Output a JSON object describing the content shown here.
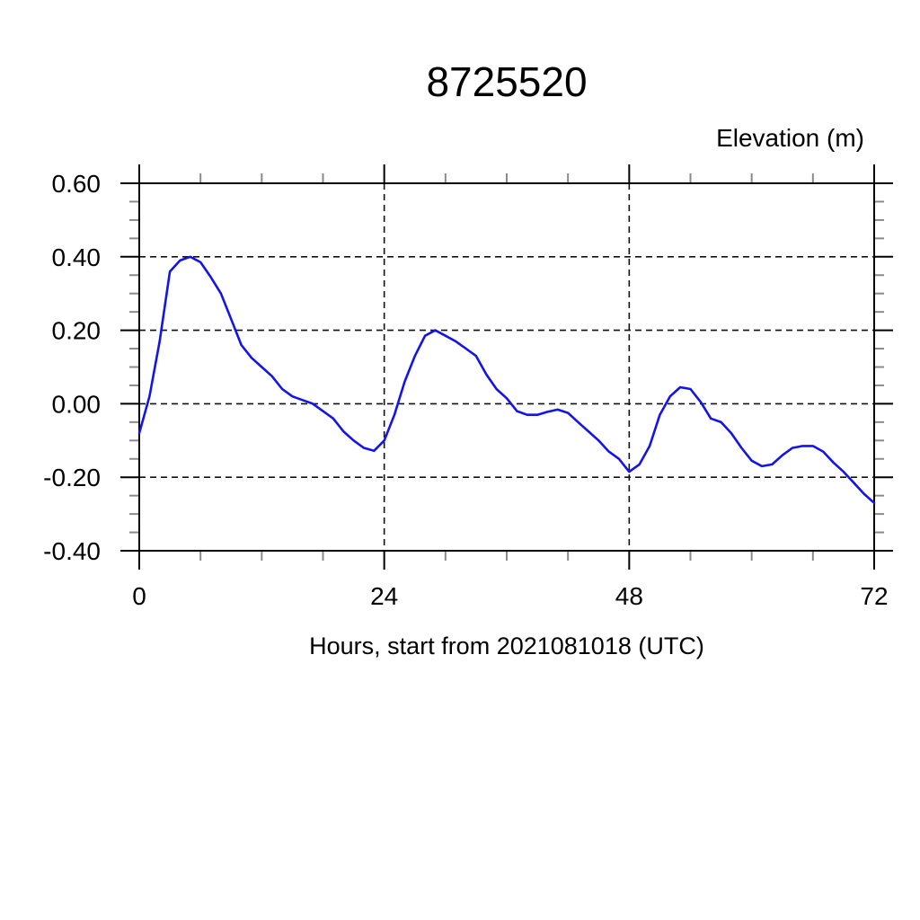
{
  "page": {
    "background": "#ffffff"
  },
  "chart_data": {
    "type": "line",
    "title": "8725520",
    "y_axis_title": "Elevation (m)",
    "xlabel": "Hours, start from 2021081018 (UTC)",
    "ylabel": "",
    "xlim": [
      0,
      72
    ],
    "ylim": [
      -0.4,
      0.6
    ],
    "x_major_ticks": [
      0,
      24,
      48,
      72
    ],
    "x_tick_labels": [
      "0",
      "24",
      "48",
      "72"
    ],
    "x_minor_tick_step": 6,
    "y_major_ticks": [
      0.6,
      0.4,
      0.2,
      0,
      -0.2,
      -0.4
    ],
    "y_tick_labels": [
      "0.60",
      "0.40",
      "0.20",
      "0.00",
      "-0.20",
      "-0.40"
    ],
    "y_minor_tick_step": 0.05,
    "grid": {
      "style": "dashed",
      "on_major_x": true,
      "on_major_y": true
    },
    "legend_position": "none",
    "colors": {
      "line": "#1414e6",
      "axis": "#000000",
      "grid": "#111111",
      "minor_tick": "#8a8a8a",
      "text": "#000000"
    },
    "series": [
      {
        "name": "elevation",
        "x": [
          0,
          1,
          2,
          3,
          4,
          5,
          6,
          7,
          8,
          9,
          10,
          11,
          12,
          13,
          14,
          15,
          16,
          17,
          18,
          19,
          20,
          21,
          22,
          23,
          24,
          25,
          26,
          27,
          28,
          29,
          30,
          31,
          32,
          33,
          34,
          35,
          36,
          37,
          38,
          39,
          40,
          41,
          42,
          43,
          44,
          45,
          46,
          47,
          48,
          49,
          50,
          51,
          52,
          53,
          54,
          55,
          56,
          57,
          58,
          59,
          60,
          61,
          62,
          63,
          64,
          65,
          66,
          67,
          68,
          69,
          70,
          71,
          72
        ],
        "y": [
          -0.08,
          0.02,
          0.17,
          0.36,
          0.39,
          0.4,
          0.385,
          0.345,
          0.3,
          0.23,
          0.16,
          0.125,
          0.1,
          0.075,
          0.04,
          0.02,
          0.01,
          0.0,
          -0.02,
          -0.04,
          -0.075,
          -0.1,
          -0.12,
          -0.128,
          -0.1,
          -0.03,
          0.06,
          0.13,
          0.185,
          0.2,
          0.185,
          0.17,
          0.15,
          0.13,
          0.08,
          0.04,
          0.015,
          -0.02,
          -0.03,
          -0.03,
          -0.022,
          -0.016,
          -0.025,
          -0.05,
          -0.075,
          -0.1,
          -0.13,
          -0.15,
          -0.185,
          -0.165,
          -0.115,
          -0.03,
          0.02,
          0.045,
          0.04,
          0.005,
          -0.04,
          -0.05,
          -0.08,
          -0.12,
          -0.155,
          -0.17,
          -0.165,
          -0.14,
          -0.12,
          -0.115,
          -0.115,
          -0.13,
          -0.16,
          -0.185,
          -0.215,
          -0.245,
          -0.27
        ]
      }
    ]
  }
}
